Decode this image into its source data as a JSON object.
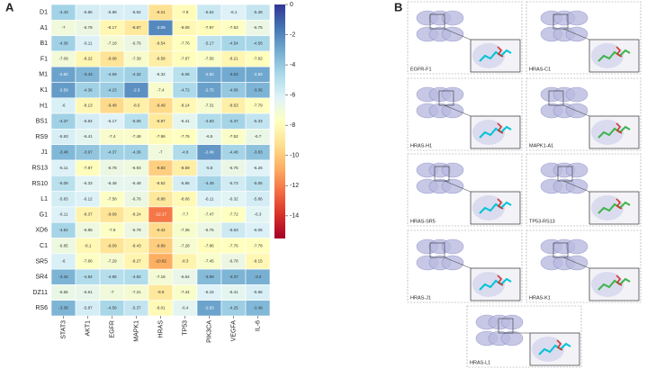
{
  "chart_data": {
    "type": "heatmap",
    "panel_label": "A",
    "rows": [
      "D1",
      "A1",
      "B1",
      "F1",
      "M1",
      "K1",
      "H1",
      "BS1",
      "RS9",
      "J1",
      "RS13",
      "RS10",
      "L1",
      "G1",
      "XD6",
      "C1",
      "SR5",
      "SR4",
      "DZ11",
      "RS6"
    ],
    "columns": [
      "STAT3",
      "AKT1",
      "EGFR",
      "MAPK1",
      "HRAS",
      "TP53",
      "PIK3CA",
      "VEGFA",
      "IL-6"
    ],
    "values": [
      [
        -4.43,
        -5.86,
        -5.98,
        -5.92,
        -9.21,
        -7.9,
        -5.54,
        -6.1,
        -5.38
      ],
      [
        -7,
        -6.78,
        -8.17,
        -8.87,
        -2.09,
        -8.08,
        -7.97,
        -7.63,
        -6.75
      ],
      [
        -4.36,
        -6.11,
        -7.18,
        -6.76,
        -8.54,
        -7.76,
        -5.17,
        -4.54,
        -4.58
      ],
      [
        -7.09,
        -8.22,
        -9.08,
        -7.39,
        -8.58,
        -7.87,
        -7.56,
        -8.21,
        -7.82
      ],
      [
        -2.82,
        -3.43,
        -4.59,
        -4.32,
        -6.32,
        -5.06,
        -2.92,
        -3.03,
        -2.93
      ],
      [
        -2.59,
        -4.36,
        -4.23,
        -2.3,
        -7.4,
        -4.72,
        -2.75,
        -4.06,
        -3.36
      ],
      [
        -6,
        -8.13,
        -9.48,
        -8.5,
        -9.49,
        -8.14,
        -7.31,
        -8.53,
        -7.79
      ],
      [
        -4.37,
        -5.84,
        -6.17,
        -5.05,
        -8.87,
        -6.41,
        -4.83,
        -4.47,
        -5.33
      ],
      [
        -5.93,
        -6.41,
        -7.4,
        -7.48,
        -7.96,
        -7.76,
        -6.5,
        -7.52,
        -6.7
      ],
      [
        -3.48,
        -3.97,
        -4.37,
        -4.36,
        -7,
        -4.8,
        -2.49,
        -4.48,
        -3.83
      ],
      [
        -6.11,
        -7.87,
        -6.78,
        -6.93,
        -9.83,
        -8.59,
        -5.8,
        -6.75,
        -6.26
      ],
      [
        -5.09,
        -6.33,
        -6.48,
        -6.48,
        -8.52,
        -5.86,
        -4.49,
        -5.73,
        -5.06
      ],
      [
        -5.83,
        -6.12,
        -7.58,
        -6.76,
        -8.88,
        -8.06,
        -6.11,
        -6.32,
        -5.86
      ],
      [
        -6.11,
        -8.37,
        -9.09,
        -8.24,
        -12.17,
        -7.7,
        -7.47,
        -7.72,
        -6.3
      ],
      [
        -4.52,
        -6.85,
        -7.6,
        -6.78,
        -9.42,
        -7.36,
        -6.75,
        -5.63,
        -6.06
      ],
      [
        -6.85,
        -8.1,
        -9.09,
        -8.43,
        -9.89,
        -7.28,
        -7.86,
        -7.76,
        -7.78
      ],
      [
        -6,
        -7.66,
        -7.29,
        -8.27,
        -10.82,
        -8.3,
        -7.45,
        -6.78,
        -8.15
      ],
      [
        -3.34,
        -4.84,
        -4.96,
        -4.82,
        -7.18,
        -6.64,
        -3.59,
        -3.37,
        -3.2
      ],
      [
        -6.66,
        -6.61,
        -7,
        -7.21,
        -8.9,
        -7.44,
        -6.16,
        -6.41,
        -5.96
      ],
      [
        -3.38,
        -5.87,
        -4.58,
        -5.37,
        -8.01,
        -6.4,
        -2.83,
        -4.25,
        -3.49
      ]
    ],
    "zlim": [
      -15.5,
      0
    ],
    "zticks": [
      0,
      -2,
      -4,
      -6,
      -8,
      -10,
      -12,
      -14
    ],
    "colormap": [
      "#a50026",
      "#d73027",
      "#f46d43",
      "#fdae61",
      "#fee090",
      "#ffffbf",
      "#e0f3f8",
      "#abd9e9",
      "#74add1",
      "#4575b4",
      "#313695"
    ]
  },
  "panel_b": {
    "panel_label": "B",
    "images": [
      {
        "label": "EGFR-F1"
      },
      {
        "label": "HRAS-C1"
      },
      {
        "label": "HRAS-H1"
      },
      {
        "label": "MAPK1-A1"
      },
      {
        "label": "HRAS-SR5"
      },
      {
        "label": "TP53-RS13"
      },
      {
        "label": "HRAS-J1"
      },
      {
        "label": "HRAS-K1"
      },
      {
        "label": "HRAS-L1"
      }
    ]
  }
}
